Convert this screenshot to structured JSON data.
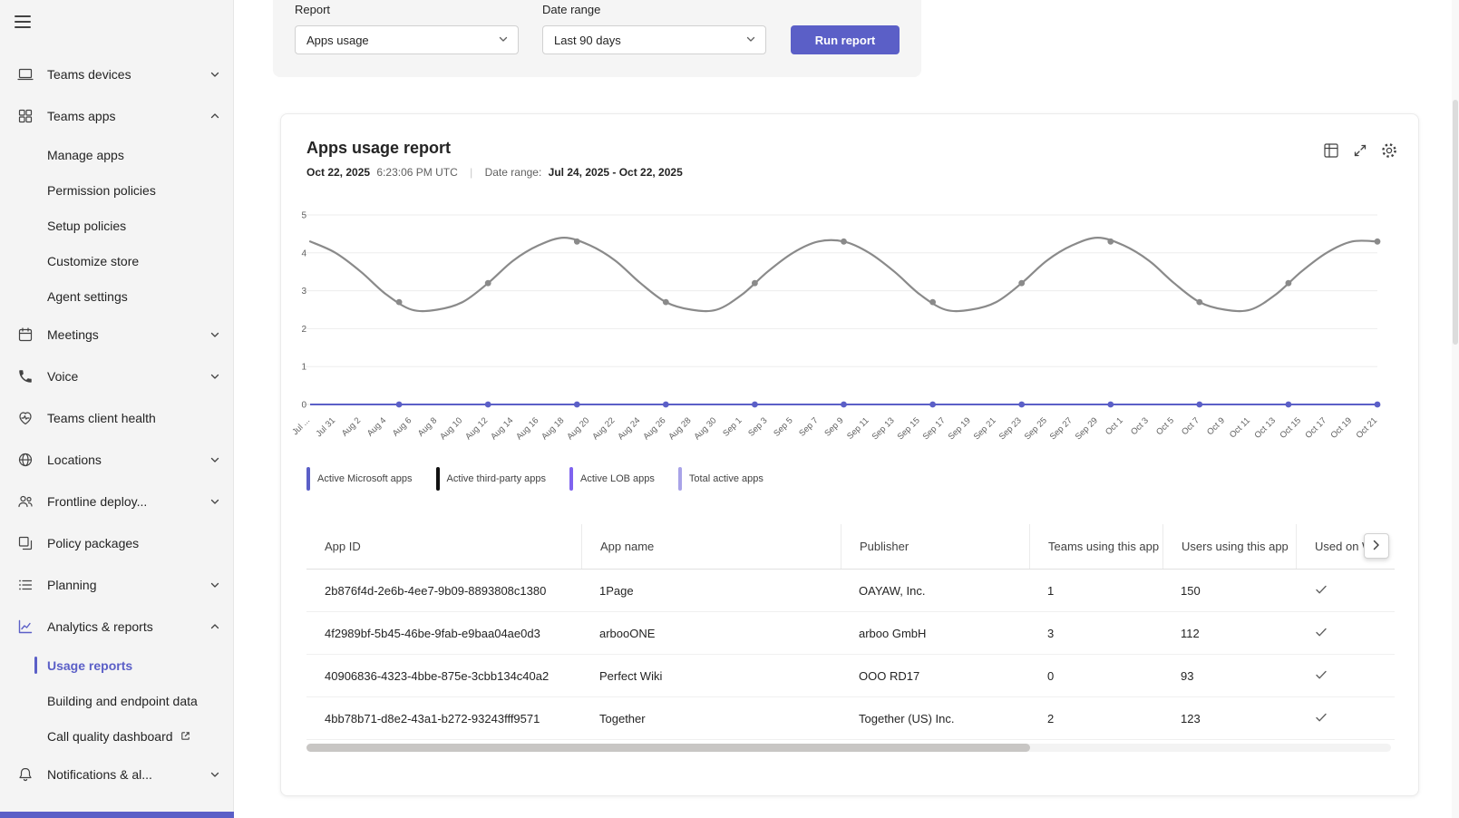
{
  "sidebar": {
    "items": [
      {
        "label": "Teams devices"
      },
      {
        "label": "Teams apps"
      },
      {
        "label": "Manage apps"
      },
      {
        "label": "Permission policies"
      },
      {
        "label": "Setup policies"
      },
      {
        "label": "Customize store"
      },
      {
        "label": "Agent settings"
      },
      {
        "label": "Meetings"
      },
      {
        "label": "Voice"
      },
      {
        "label": "Teams client health"
      },
      {
        "label": "Locations"
      },
      {
        "label": "Frontline deploy..."
      },
      {
        "label": "Policy packages"
      },
      {
        "label": "Planning"
      },
      {
        "label": "Analytics & reports"
      },
      {
        "label": "Usage reports"
      },
      {
        "label": "Building and endpoint data"
      },
      {
        "label": "Call quality dashboard"
      },
      {
        "label": "Notifications & al..."
      }
    ],
    "selected_item": "Usage reports",
    "accent_color": "#5b5fc7"
  },
  "filters": {
    "report_label": "Report",
    "report_value": "Apps usage",
    "date_range_label": "Date range",
    "date_range_value": "Last 90 days",
    "run_button_label": "Run report"
  },
  "report_header": {
    "title": "Apps usage report",
    "generated_date": "Oct 22, 2025",
    "generated_time": "6:23:06 PM UTC",
    "separator": "|",
    "date_range_label": "Date range:",
    "date_range_value": "Jul 24, 2025 - Oct 22, 2025"
  },
  "legend": [
    {
      "label": "Active Microsoft apps",
      "color": "#5b5fc7"
    },
    {
      "label": "Active third-party apps",
      "color": "#111111"
    },
    {
      "label": "Active LOB apps",
      "color": "#7f63ef"
    },
    {
      "label": "Total active apps",
      "color": "#a9a3e8"
    }
  ],
  "chart_data": {
    "type": "line",
    "title": "Apps usage report",
    "xlabel": "",
    "ylabel": "",
    "ylim": [
      0,
      5
    ],
    "y_ticks": [
      0,
      1,
      2,
      3,
      4,
      5
    ],
    "grid": true,
    "legend_position": "bottom",
    "x_labels": [
      "Jul ...",
      "Jul 31",
      "Aug 2",
      "Aug 4",
      "Aug 6",
      "Aug 8",
      "Aug 10",
      "Aug 12",
      "Aug 14",
      "Aug 16",
      "Aug 18",
      "Aug 20",
      "Aug 22",
      "Aug 24",
      "Aug 26",
      "Aug 28",
      "Aug 30",
      "Sep 1",
      "Sep 3",
      "Sep 5",
      "Sep 7",
      "Sep 9",
      "Sep 11",
      "Sep 13",
      "Sep 15",
      "Sep 17",
      "Sep 19",
      "Sep 21",
      "Sep 23",
      "Sep 25",
      "Sep 27",
      "Sep 29",
      "Oct 1",
      "Oct 3",
      "Oct 5",
      "Oct 7",
      "Oct 9",
      "Oct 11",
      "Oct 13",
      "Oct 15",
      "Oct 17",
      "Oct 19",
      "Oct 21"
    ],
    "series": [
      {
        "name": "Total active apps",
        "color": "#8a8a8a",
        "values": [
          4.3,
          4.0,
          3.5,
          2.9,
          2.5,
          2.5,
          2.7,
          3.2,
          3.8,
          4.2,
          4.4,
          4.2,
          3.8,
          3.2,
          2.7,
          2.5,
          2.5,
          2.9,
          3.5,
          4.0,
          4.3,
          4.3,
          4.0,
          3.5,
          2.9,
          2.5,
          2.5,
          2.7,
          3.2,
          3.8,
          4.2,
          4.4,
          4.2,
          3.8,
          3.2,
          2.7,
          2.5,
          2.5,
          2.9,
          3.5,
          4.0,
          4.3,
          4.3
        ]
      },
      {
        "name": "Active LOB apps",
        "color": "#5b5fc7",
        "values": [
          0,
          0,
          0,
          0,
          0,
          0,
          0,
          0,
          0,
          0,
          0,
          0,
          0,
          0,
          0,
          0,
          0,
          0,
          0,
          0,
          0,
          0,
          0,
          0,
          0,
          0,
          0,
          0,
          0,
          0,
          0,
          0,
          0,
          0,
          0,
          0,
          0,
          0,
          0,
          0,
          0,
          0,
          0
        ]
      }
    ]
  },
  "table": {
    "columns": [
      "App ID",
      "App name",
      "Publisher",
      "Teams using this app",
      "Users using this app",
      "Used on W"
    ],
    "rows": [
      {
        "app_id": "2b876f4d-2e6b-4ee7-9b09-8893808c1380",
        "app_name": "1Page",
        "publisher": "OAYAW, Inc.",
        "teams_using": "1",
        "users_using": "150",
        "used_on_windows": true
      },
      {
        "app_id": "4f2989bf-5b45-46be-9fab-e9baa04ae0d3",
        "app_name": "arbooONE",
        "publisher": "arboo GmbH",
        "teams_using": "3",
        "users_using": "112",
        "used_on_windows": true
      },
      {
        "app_id": "40906836-4323-4bbe-875e-3cbb134c40a2",
        "app_name": "Perfect Wiki",
        "publisher": "OOO RD17",
        "teams_using": "0",
        "users_using": "93",
        "used_on_windows": true
      },
      {
        "app_id": "4bb78b71-d8e2-43a1-b272-93243fff9571",
        "app_name": "Together",
        "publisher": "Together (US) Inc.",
        "teams_using": "2",
        "users_using": "123",
        "used_on_windows": true
      }
    ]
  }
}
